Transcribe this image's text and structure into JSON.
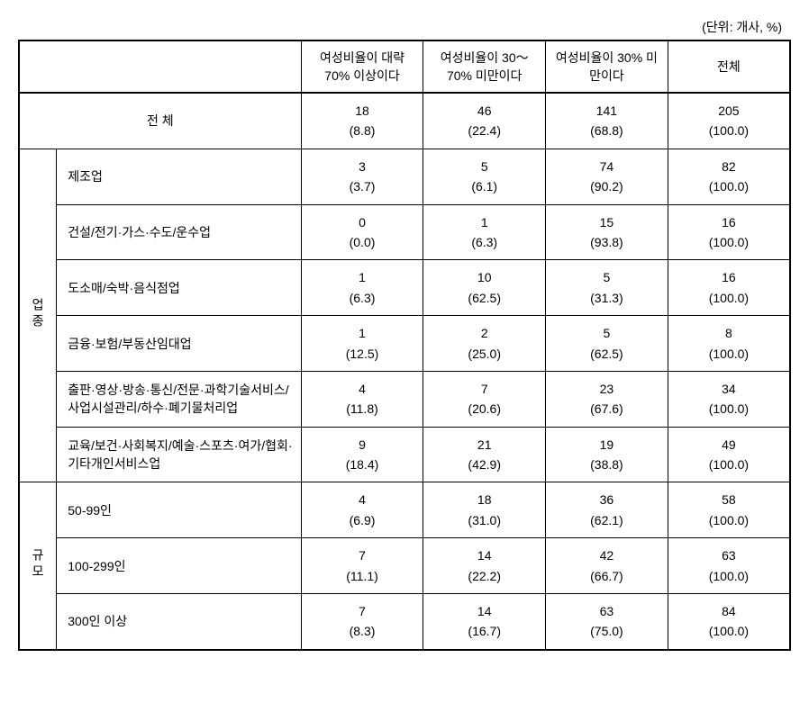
{
  "unit_label": "(단위: 개사, %)",
  "columns": {
    "col1": "여성비율이 대략 70% 이상이다",
    "col2": "여성비율이 30～70% 미만이다",
    "col3": "여성비율이 30% 미만이다",
    "col4": "전체"
  },
  "total_row": {
    "label": "전 체",
    "v1": "18",
    "p1": "(8.8)",
    "v2": "46",
    "p2": "(22.4)",
    "v3": "141",
    "p3": "(68.8)",
    "v4": "205",
    "p4": "(100.0)"
  },
  "groups": {
    "industry": {
      "label": "업종",
      "rows": [
        {
          "label": "제조업",
          "v1": "3",
          "p1": "(3.7)",
          "v2": "5",
          "p2": "(6.1)",
          "v3": "74",
          "p3": "(90.2)",
          "v4": "82",
          "p4": "(100.0)"
        },
        {
          "label": "건설/전기·가스·수도/운수업",
          "v1": "0",
          "p1": "(0.0)",
          "v2": "1",
          "p2": "(6.3)",
          "v3": "15",
          "p3": "(93.8)",
          "v4": "16",
          "p4": "(100.0)"
        },
        {
          "label": "도소매/숙박·음식점업",
          "v1": "1",
          "p1": "(6.3)",
          "v2": "10",
          "p2": "(62.5)",
          "v3": "5",
          "p3": "(31.3)",
          "v4": "16",
          "p4": "(100.0)"
        },
        {
          "label": "금융·보험/부동산임대업",
          "v1": "1",
          "p1": "(12.5)",
          "v2": "2",
          "p2": "(25.0)",
          "v3": "5",
          "p3": "(62.5)",
          "v4": "8",
          "p4": "(100.0)"
        },
        {
          "label": "출판·영상·방송·통신/전문·과학기술서비스/사업시설관리/하수·폐기물처리업",
          "v1": "4",
          "p1": "(11.8)",
          "v2": "7",
          "p2": "(20.6)",
          "v3": "23",
          "p3": "(67.6)",
          "v4": "34",
          "p4": "(100.0)"
        },
        {
          "label": "교육/보건·사회복지/예술·스포츠·여가/협회·기타개인서비스업",
          "v1": "9",
          "p1": "(18.4)",
          "v2": "21",
          "p2": "(42.9)",
          "v3": "19",
          "p3": "(38.8)",
          "v4": "49",
          "p4": "(100.0)"
        }
      ]
    },
    "size": {
      "label": "규모",
      "rows": [
        {
          "label": "50-99인",
          "v1": "4",
          "p1": "(6.9)",
          "v2": "18",
          "p2": "(31.0)",
          "v3": "36",
          "p3": "(62.1)",
          "v4": "58",
          "p4": "(100.0)"
        },
        {
          "label": "100-299인",
          "v1": "7",
          "p1": "(11.1)",
          "v2": "14",
          "p2": "(22.2)",
          "v3": "42",
          "p3": "(66.7)",
          "v4": "63",
          "p4": "(100.0)"
        },
        {
          "label": "300인 이상",
          "v1": "7",
          "p1": "(8.3)",
          "v2": "14",
          "p2": "(16.7)",
          "v3": "63",
          "p3": "(75.0)",
          "v4": "84",
          "p4": "(100.0)"
        }
      ]
    }
  },
  "styling": {
    "font_family": "Malgun Gothic",
    "font_size_pt": 14,
    "border_color": "#000000",
    "background": "#ffffff",
    "text_color": "#000000"
  }
}
